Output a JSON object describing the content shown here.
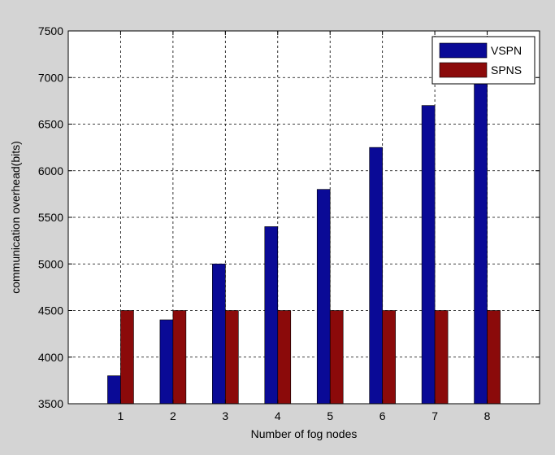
{
  "chart_data": {
    "type": "bar",
    "title": "",
    "xlabel": "Number of fog nodes",
    "ylabel": "communication overhead(bits)",
    "categories": [
      "1",
      "2",
      "3",
      "4",
      "5",
      "6",
      "7",
      "8"
    ],
    "series": [
      {
        "name": "VSPN",
        "values": [
          3800,
          4400,
          5000,
          5400,
          5800,
          6250,
          6700,
          7150
        ],
        "color": "#0a0a96"
      },
      {
        "name": "SPNS",
        "values": [
          4500,
          4500,
          4500,
          4500,
          4500,
          4500,
          4500,
          4500
        ],
        "color": "#8b0a0a"
      }
    ],
    "ylim": [
      3500,
      7500
    ],
    "yticks": [
      3500,
      4000,
      4500,
      5000,
      5500,
      6000,
      6500,
      7000,
      7500
    ],
    "grid": true,
    "legend": "top-right"
  }
}
